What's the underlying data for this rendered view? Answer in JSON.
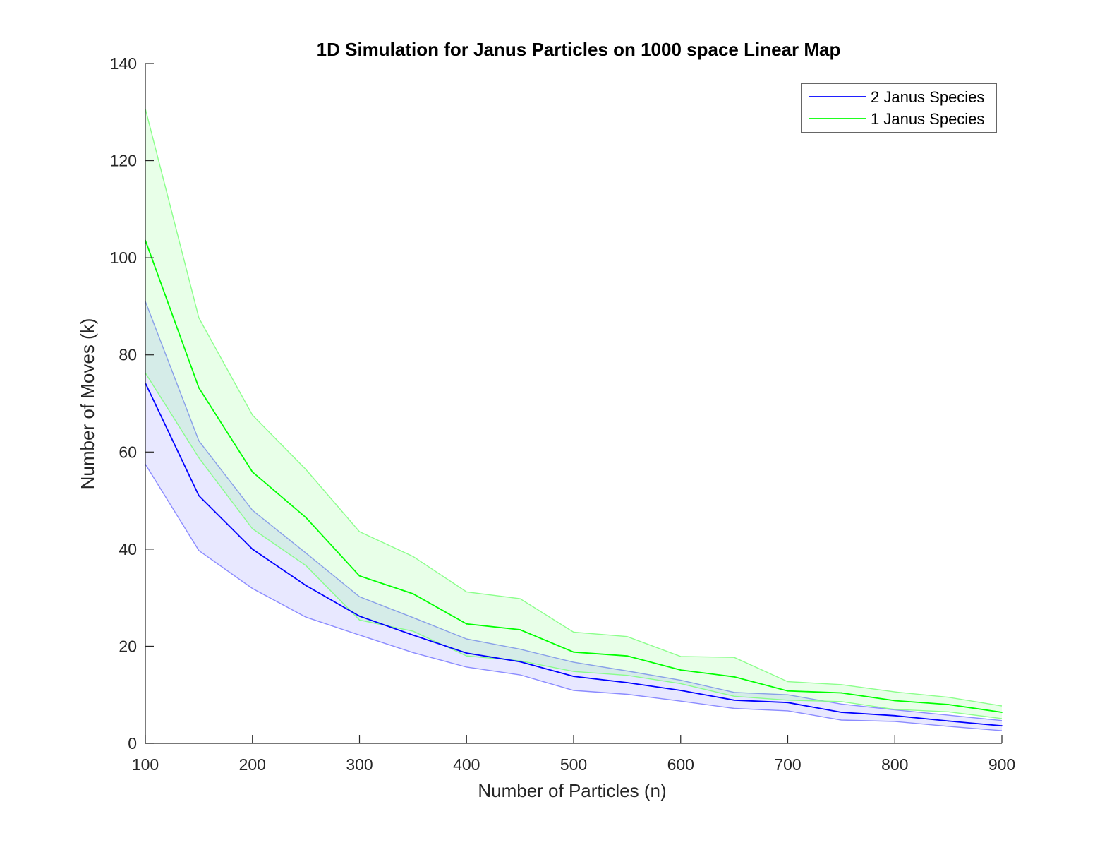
{
  "chart_data": {
    "type": "line",
    "title": "1D Simulation for Janus Particles on 1000 space Linear Map",
    "xlabel": "Number of Particles (n)",
    "ylabel": "Number of Moves (k)",
    "xlim": [
      100,
      900
    ],
    "ylim": [
      0,
      140
    ],
    "xticks": [
      100,
      200,
      300,
      400,
      500,
      600,
      700,
      800,
      900
    ],
    "yticks": [
      0,
      20,
      40,
      60,
      80,
      100,
      120,
      140
    ],
    "grid": false,
    "legend_position": "top-right",
    "x": [
      100,
      150,
      200,
      250,
      300,
      350,
      400,
      450,
      500,
      550,
      600,
      650,
      700,
      750,
      800,
      850,
      900
    ],
    "series": [
      {
        "name": "2 Janus Species",
        "color": "#0000ff",
        "band_color": "#8080ff",
        "values": [
          74.2,
          51.0,
          40.0,
          32.5,
          26.2,
          22.3,
          18.6,
          16.8,
          13.8,
          12.5,
          10.9,
          8.9,
          8.4,
          6.4,
          5.7,
          4.6,
          3.6
        ],
        "upper": [
          91.0,
          62.3,
          48.0,
          39.2,
          30.2,
          25.9,
          21.5,
          19.4,
          16.7,
          14.9,
          13.0,
          10.5,
          10.0,
          8.1,
          6.9,
          5.8,
          4.7
        ],
        "lower": [
          57.5,
          39.7,
          31.9,
          26.0,
          22.3,
          18.7,
          15.7,
          14.1,
          10.9,
          10.1,
          8.7,
          7.2,
          6.7,
          4.8,
          4.5,
          3.5,
          2.6
        ]
      },
      {
        "name": "1 Janus Species",
        "color": "#00ff00",
        "band_color": "#80ff80",
        "values": [
          103.6,
          73.2,
          55.9,
          46.5,
          34.5,
          30.8,
          24.6,
          23.4,
          18.8,
          18.0,
          15.1,
          13.7,
          10.8,
          10.4,
          8.8,
          8.0,
          6.4
        ],
        "upper": [
          130.7,
          87.6,
          67.6,
          56.4,
          43.6,
          38.5,
          31.2,
          29.8,
          22.9,
          22.0,
          17.9,
          17.7,
          12.7,
          12.1,
          10.6,
          9.5,
          7.7
        ],
        "lower": [
          76.3,
          58.8,
          44.2,
          36.6,
          25.4,
          23.1,
          18.0,
          17.0,
          14.8,
          14.0,
          12.3,
          9.7,
          8.9,
          8.6,
          7.0,
          6.5,
          5.1
        ]
      }
    ]
  }
}
